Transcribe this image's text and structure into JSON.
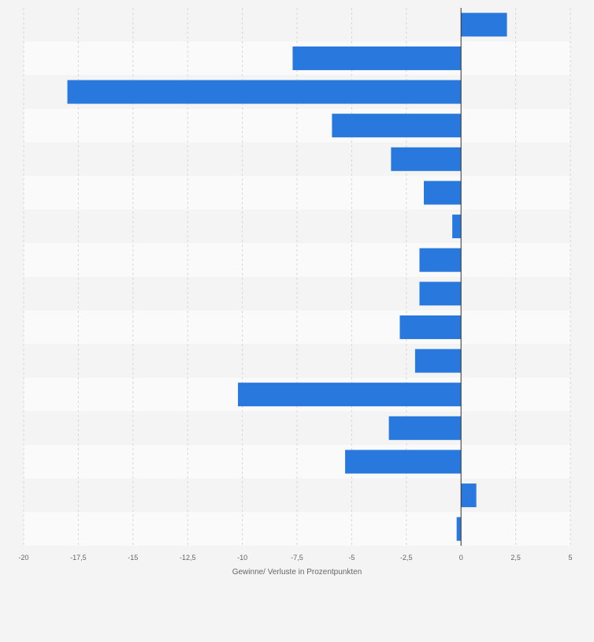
{
  "chart_data": {
    "type": "bar",
    "orientation": "horizontal",
    "xlabel": "Gewinne/ Verluste in Prozentpunkten",
    "xlim": [
      -20,
      5
    ],
    "xticks": [
      -20,
      -17.5,
      -15,
      -12.5,
      -10,
      -7.5,
      -5,
      -2.5,
      0,
      2.5,
      5
    ],
    "xtick_labels": [
      "-20",
      "-17,5",
      "-15",
      "-12,5",
      "-10",
      "-7,5",
      "-5",
      "-2,5",
      "0",
      "2,5",
      "5"
    ],
    "values": [
      2.1,
      -7.7,
      -18.0,
      -5.9,
      -3.2,
      -1.7,
      -0.4,
      -1.9,
      -1.9,
      -2.8,
      -2.1,
      -10.2,
      -3.3,
      -5.3,
      0.7,
      -0.2
    ],
    "grid": true,
    "bar_color": "#2878dd",
    "row_colors": [
      "#f4f4f4",
      "#fafafa"
    ]
  }
}
